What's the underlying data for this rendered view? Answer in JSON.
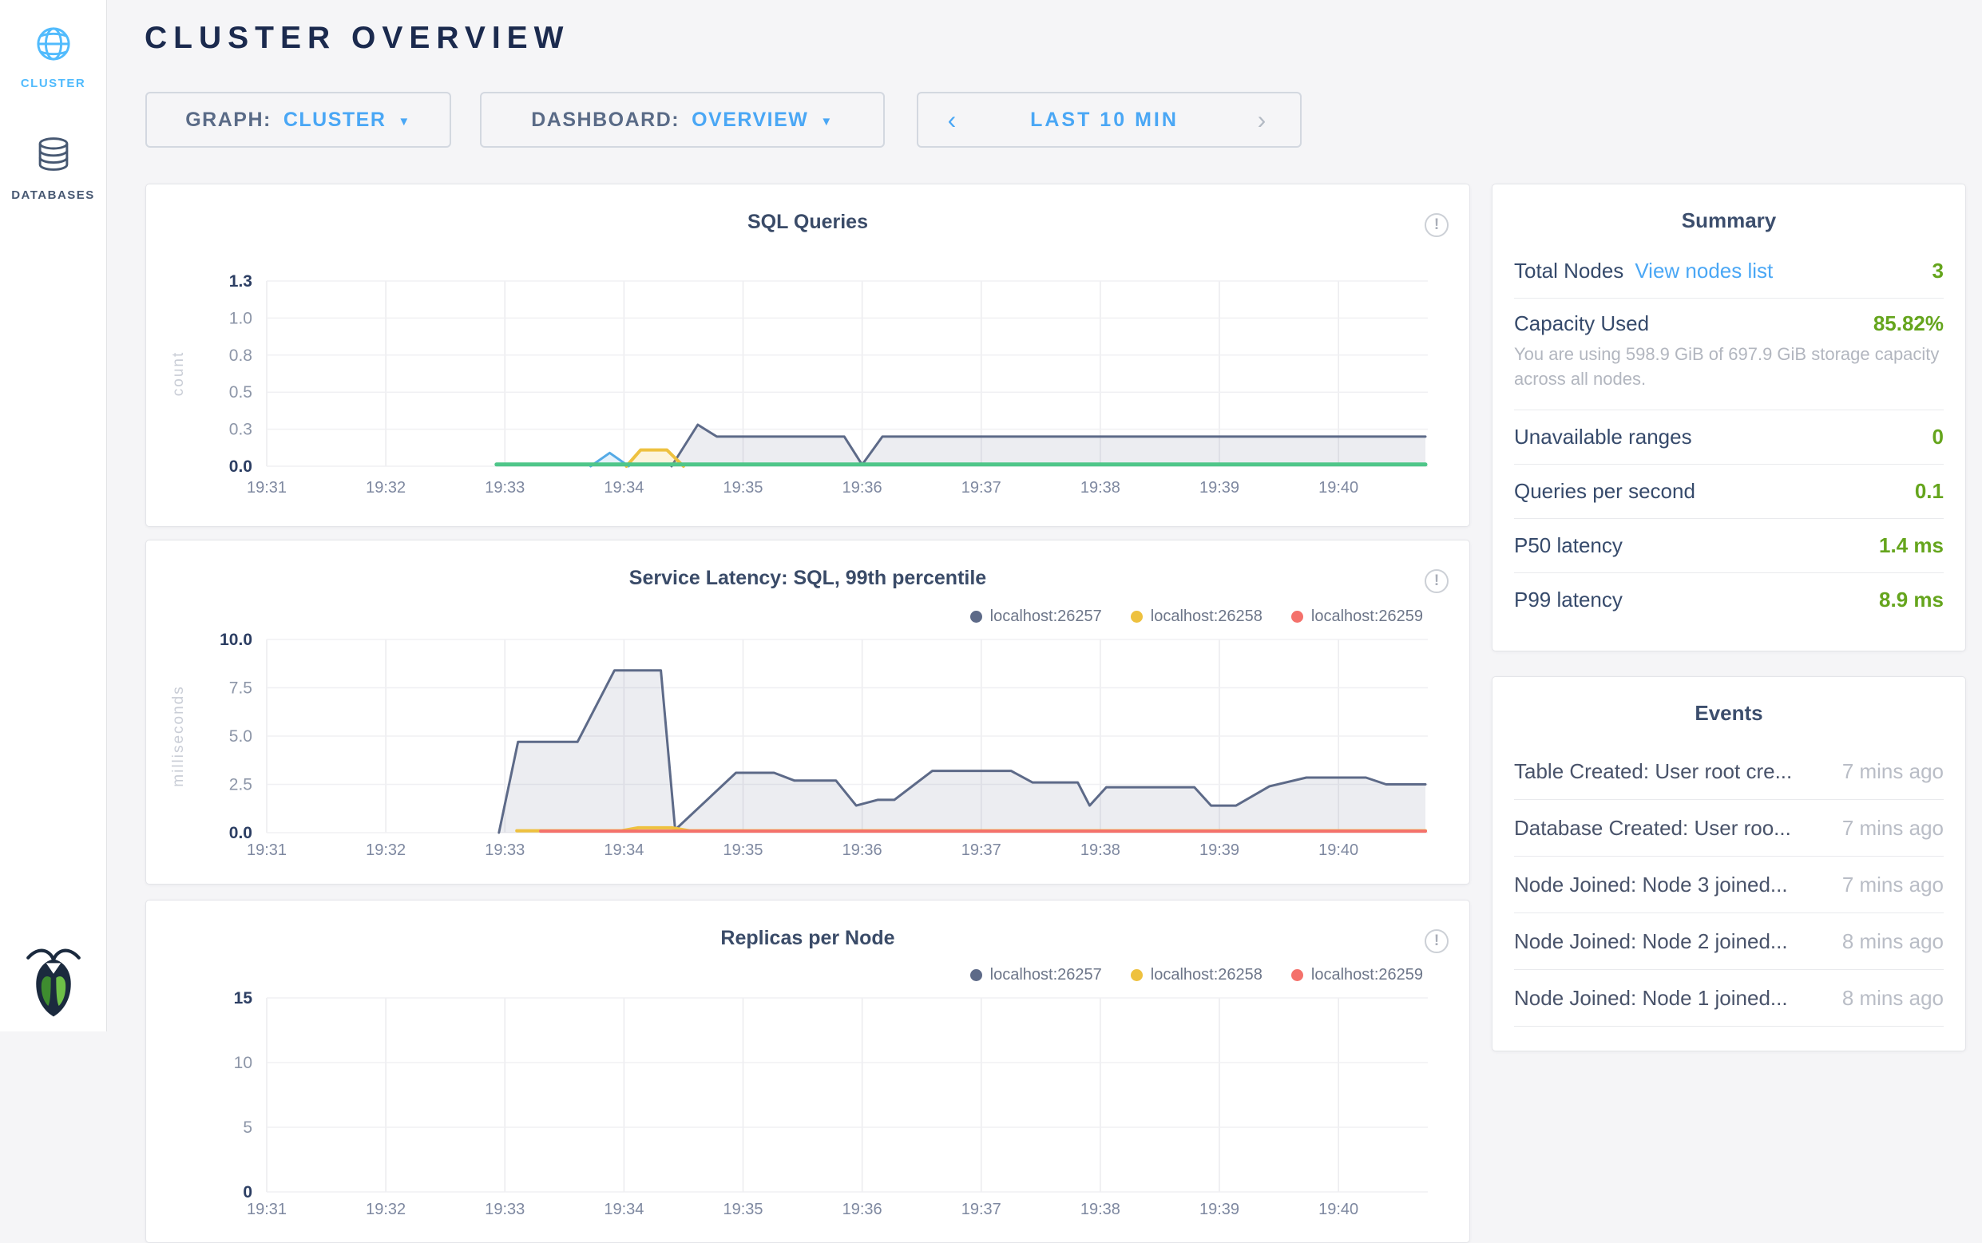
{
  "sidebar": {
    "items": [
      {
        "label": "CLUSTER",
        "icon": "globe-icon",
        "active": true
      },
      {
        "label": "DATABASES",
        "icon": "database-icon",
        "active": false
      }
    ]
  },
  "header": {
    "title": "CLUSTER OVERVIEW",
    "graph_label": "GRAPH:",
    "graph_value": "CLUSTER",
    "dashboard_label": "DASHBOARD:",
    "dashboard_value": "OVERVIEW",
    "time_range": "LAST 10 MIN"
  },
  "icons": {
    "caret": "▼",
    "prev": "‹",
    "next": "›",
    "info": "!"
  },
  "colors": {
    "accent_blue": "#4aa7f5",
    "navy": "#1b2a4e",
    "value_green": "#65a51d",
    "series_slate": "#5d6a88",
    "series_yellow": "#eec13f",
    "series_red": "#f4716b",
    "series_green": "#4fc689",
    "series_blue": "#54aae6"
  },
  "chart_data": [
    {
      "type": "area",
      "title": "SQL Queries",
      "ylabel": "count",
      "x_ticks": [
        "19:31",
        "19:32",
        "19:33",
        "19:34",
        "19:35",
        "19:36",
        "19:37",
        "19:38",
        "19:39",
        "19:40"
      ],
      "xlim": [
        0,
        9.75
      ],
      "y_tick_labels": [
        "1.3",
        "1.0",
        "0.8",
        "0.5",
        "0.3",
        "0.0"
      ],
      "ylim": [
        0,
        1.25
      ],
      "grid": true,
      "legend": [],
      "series": [
        {
          "name": "slate",
          "color": "#5d6a88",
          "fill": "rgba(95,108,138,0.12)",
          "width": 3,
          "points": [
            [
              3.4,
              0
            ],
            [
              3.62,
              0.28
            ],
            [
              3.78,
              0.2
            ],
            [
              4.85,
              0.2
            ],
            [
              5.0,
              0.01
            ],
            [
              5.17,
              0.2
            ],
            [
              9.73,
              0.2
            ]
          ]
        },
        {
          "name": "blue",
          "color": "#54aae6",
          "fill": "rgba(84,170,230,0.15)",
          "width": 3,
          "points": [
            [
              2.72,
              0
            ],
            [
              2.88,
              0.09
            ],
            [
              3.04,
              0
            ]
          ]
        },
        {
          "name": "yellow",
          "color": "#eec13f",
          "fill": "rgba(238,193,63,0.18)",
          "width": 4,
          "points": [
            [
              3.02,
              0
            ],
            [
              3.14,
              0.11
            ],
            [
              3.36,
              0.11
            ],
            [
              3.5,
              0
            ]
          ]
        },
        {
          "name": "green",
          "color": "#4fc689",
          "fill": null,
          "width": 5,
          "points": [
            [
              1.93,
              0.012
            ],
            [
              9.73,
              0.012
            ]
          ]
        }
      ]
    },
    {
      "type": "area",
      "title": "Service Latency: SQL, 99th percentile",
      "ylabel": "milliseconds",
      "x_ticks": [
        "19:31",
        "19:32",
        "19:33",
        "19:34",
        "19:35",
        "19:36",
        "19:37",
        "19:38",
        "19:39",
        "19:40"
      ],
      "xlim": [
        0,
        9.75
      ],
      "y_tick_labels": [
        "10.0",
        "7.5",
        "5.0",
        "2.5",
        "0.0"
      ],
      "ylim": [
        0,
        10
      ],
      "grid": true,
      "legend": [
        {
          "label": "localhost:26257",
          "color": "#5d6a88"
        },
        {
          "label": "localhost:26258",
          "color": "#eec13f"
        },
        {
          "label": "localhost:26259",
          "color": "#f4716b"
        }
      ],
      "series": [
        {
          "name": "localhost:26257",
          "color": "#5d6a88",
          "fill": "rgba(95,108,138,0.12)",
          "width": 3,
          "points": [
            [
              1.95,
              0
            ],
            [
              2.11,
              4.7
            ],
            [
              2.61,
              4.7
            ],
            [
              2.92,
              8.4
            ],
            [
              3.31,
              8.4
            ],
            [
              3.43,
              0.15
            ],
            [
              3.94,
              3.1
            ],
            [
              4.26,
              3.1
            ],
            [
              4.43,
              2.7
            ],
            [
              4.78,
              2.7
            ],
            [
              4.95,
              1.4
            ],
            [
              5.13,
              1.7
            ],
            [
              5.27,
              1.7
            ],
            [
              5.59,
              3.2
            ],
            [
              6.25,
              3.2
            ],
            [
              6.43,
              2.6
            ],
            [
              6.81,
              2.6
            ],
            [
              6.91,
              1.4
            ],
            [
              7.05,
              2.35
            ],
            [
              7.79,
              2.35
            ],
            [
              7.93,
              1.4
            ],
            [
              8.14,
              1.4
            ],
            [
              8.42,
              2.4
            ],
            [
              8.73,
              2.85
            ],
            [
              9.23,
              2.85
            ],
            [
              9.4,
              2.5
            ],
            [
              9.73,
              2.5
            ]
          ]
        },
        {
          "name": "localhost:26258",
          "color": "#eec13f",
          "fill": "rgba(238,193,63,0.18)",
          "width": 4,
          "points": [
            [
              2.1,
              0.1
            ],
            [
              2.98,
              0.1
            ],
            [
              3.12,
              0.25
            ],
            [
              3.4,
              0.25
            ],
            [
              3.55,
              0.1
            ],
            [
              9.73,
              0.1
            ]
          ]
        },
        {
          "name": "localhost:26259",
          "color": "#f4716b",
          "fill": null,
          "width": 4,
          "points": [
            [
              2.3,
              0.08
            ],
            [
              9.73,
              0.08
            ]
          ]
        }
      ]
    },
    {
      "type": "area",
      "title": "Replicas per Node",
      "ylabel": "",
      "x_ticks": [
        "19:31",
        "19:32",
        "19:33",
        "19:34",
        "19:35",
        "19:36",
        "19:37",
        "19:38",
        "19:39",
        "19:40"
      ],
      "xlim": [
        0,
        9.75
      ],
      "y_tick_labels": [
        "15",
        "10",
        "5",
        "0"
      ],
      "ylim": [
        0,
        15
      ],
      "grid": true,
      "legend": [
        {
          "label": "localhost:26257",
          "color": "#5d6a88"
        },
        {
          "label": "localhost:26258",
          "color": "#eec13f"
        },
        {
          "label": "localhost:26259",
          "color": "#f4716b"
        }
      ],
      "series": []
    }
  ],
  "summary": {
    "title": "Summary",
    "rows": [
      {
        "label": "Total Nodes",
        "link": "View nodes list",
        "value": "3"
      },
      {
        "label": "Capacity Used",
        "value": "85.82%",
        "subtext": "You are using 598.9 GiB of 697.9 GiB storage capacity across all nodes."
      },
      {
        "label": "Unavailable ranges",
        "value": "0"
      },
      {
        "label": "Queries per second",
        "value": "0.1"
      },
      {
        "label": "P50 latency",
        "value": "1.4 ms"
      },
      {
        "label": "P99 latency",
        "value": "8.9 ms"
      }
    ]
  },
  "events": {
    "title": "Events",
    "items": [
      {
        "text": "Table Created: User root cre...",
        "time": "7 mins ago"
      },
      {
        "text": "Database Created: User roo...",
        "time": "7 mins ago"
      },
      {
        "text": "Node Joined: Node 3 joined...",
        "time": "7 mins ago"
      },
      {
        "text": "Node Joined: Node 2 joined...",
        "time": "8 mins ago"
      },
      {
        "text": "Node Joined: Node 1 joined...",
        "time": "8 mins ago"
      }
    ]
  }
}
